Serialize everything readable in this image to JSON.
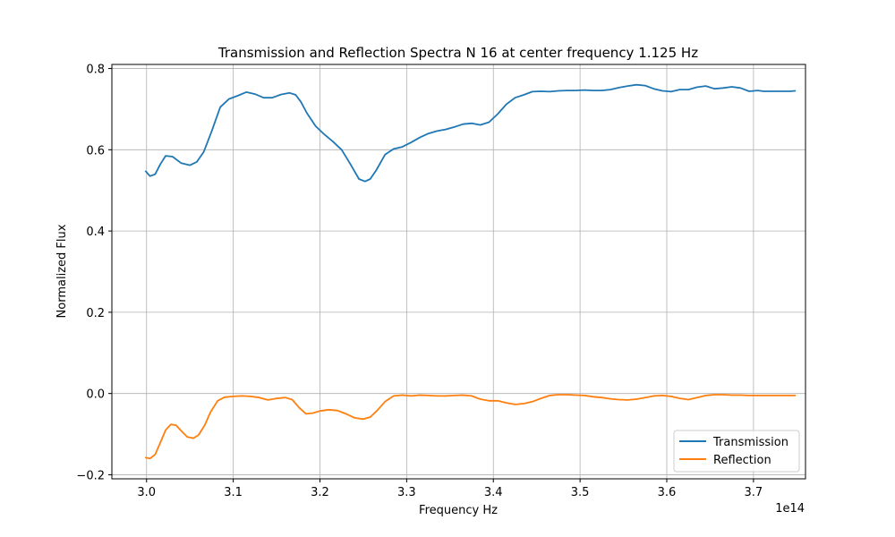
{
  "chart_data": {
    "type": "line",
    "title": "Transmission and Reflection Spectra N 16 at center frequency 1.125 Hz",
    "xlabel": "Frequency Hz",
    "ylabel": "Normalized Flux",
    "x_offset_label": "1e14",
    "xlim": [
      2.96,
      3.76
    ],
    "ylim": [
      -0.21,
      0.81
    ],
    "x_ticks": [
      3.0,
      3.1,
      3.2,
      3.3,
      3.4,
      3.5,
      3.6,
      3.7
    ],
    "x_tick_labels": [
      "3.0",
      "3.1",
      "3.2",
      "3.3",
      "3.4",
      "3.5",
      "3.6",
      "3.7"
    ],
    "y_ticks": [
      -0.2,
      0.0,
      0.2,
      0.4,
      0.6,
      0.8
    ],
    "y_tick_labels": [
      "−0.2",
      "0.0",
      "0.2",
      "0.4",
      "0.6",
      "0.8"
    ],
    "grid": true,
    "legend_position": "bottom-right",
    "series": [
      {
        "name": "Transmission",
        "color": "#1f77b4",
        "x": [
          2.999,
          3.004,
          3.01,
          3.016,
          3.022,
          3.03,
          3.04,
          3.05,
          3.058,
          3.066,
          3.075,
          3.085,
          3.095,
          3.105,
          3.115,
          3.125,
          3.135,
          3.145,
          3.155,
          3.165,
          3.172,
          3.178,
          3.185,
          3.195,
          3.205,
          3.215,
          3.225,
          3.235,
          3.245,
          3.252,
          3.258,
          3.265,
          3.275,
          3.285,
          3.295,
          3.305,
          3.315,
          3.325,
          3.335,
          3.345,
          3.355,
          3.365,
          3.375,
          3.385,
          3.395,
          3.405,
          3.415,
          3.425,
          3.435,
          3.445,
          3.455,
          3.465,
          3.475,
          3.485,
          3.495,
          3.505,
          3.515,
          3.525,
          3.535,
          3.545,
          3.555,
          3.565,
          3.575,
          3.585,
          3.595,
          3.605,
          3.615,
          3.625,
          3.635,
          3.645,
          3.655,
          3.665,
          3.675,
          3.685,
          3.695,
          3.705,
          3.712,
          3.72,
          3.728,
          3.735,
          3.742,
          3.748
        ],
        "y": [
          0.547,
          0.535,
          0.54,
          0.565,
          0.585,
          0.583,
          0.567,
          0.562,
          0.57,
          0.595,
          0.645,
          0.705,
          0.725,
          0.733,
          0.742,
          0.737,
          0.728,
          0.728,
          0.736,
          0.74,
          0.735,
          0.718,
          0.69,
          0.658,
          0.638,
          0.62,
          0.6,
          0.565,
          0.528,
          0.522,
          0.528,
          0.55,
          0.588,
          0.602,
          0.607,
          0.618,
          0.63,
          0.64,
          0.646,
          0.65,
          0.656,
          0.663,
          0.665,
          0.661,
          0.668,
          0.688,
          0.712,
          0.728,
          0.735,
          0.743,
          0.744,
          0.743,
          0.745,
          0.746,
          0.746,
          0.747,
          0.746,
          0.746,
          0.748,
          0.753,
          0.757,
          0.76,
          0.758,
          0.75,
          0.745,
          0.743,
          0.748,
          0.748,
          0.754,
          0.757,
          0.75,
          0.752,
          0.755,
          0.752,
          0.744,
          0.746,
          0.744,
          0.744,
          0.744,
          0.744,
          0.744,
          0.745
        ]
      },
      {
        "name": "Reflection",
        "color": "#ff7f0e",
        "x": [
          2.999,
          3.004,
          3.01,
          3.016,
          3.022,
          3.028,
          3.034,
          3.04,
          3.047,
          3.054,
          3.06,
          3.067,
          3.074,
          3.082,
          3.09,
          3.1,
          3.11,
          3.12,
          3.13,
          3.14,
          3.15,
          3.16,
          3.168,
          3.176,
          3.184,
          3.192,
          3.2,
          3.21,
          3.22,
          3.23,
          3.24,
          3.25,
          3.258,
          3.266,
          3.275,
          3.285,
          3.295,
          3.305,
          3.315,
          3.325,
          3.335,
          3.345,
          3.355,
          3.365,
          3.375,
          3.385,
          3.395,
          3.405,
          3.415,
          3.425,
          3.435,
          3.445,
          3.455,
          3.465,
          3.475,
          3.485,
          3.495,
          3.505,
          3.515,
          3.525,
          3.535,
          3.545,
          3.555,
          3.565,
          3.575,
          3.585,
          3.595,
          3.605,
          3.615,
          3.625,
          3.635,
          3.645,
          3.655,
          3.665,
          3.675,
          3.685,
          3.695,
          3.705,
          3.715,
          3.725,
          3.735,
          3.748
        ],
        "y": [
          -0.158,
          -0.16,
          -0.15,
          -0.12,
          -0.09,
          -0.076,
          -0.078,
          -0.092,
          -0.107,
          -0.11,
          -0.102,
          -0.078,
          -0.045,
          -0.018,
          -0.009,
          -0.007,
          -0.006,
          -0.007,
          -0.01,
          -0.016,
          -0.012,
          -0.01,
          -0.015,
          -0.035,
          -0.05,
          -0.048,
          -0.043,
          -0.04,
          -0.042,
          -0.05,
          -0.06,
          -0.063,
          -0.058,
          -0.042,
          -0.02,
          -0.006,
          -0.004,
          -0.006,
          -0.004,
          -0.005,
          -0.006,
          -0.006,
          -0.005,
          -0.004,
          -0.006,
          -0.014,
          -0.018,
          -0.018,
          -0.023,
          -0.027,
          -0.025,
          -0.02,
          -0.012,
          -0.005,
          -0.003,
          -0.003,
          -0.004,
          -0.005,
          -0.008,
          -0.01,
          -0.013,
          -0.015,
          -0.016,
          -0.014,
          -0.01,
          -0.006,
          -0.005,
          -0.007,
          -0.012,
          -0.015,
          -0.01,
          -0.005,
          -0.003,
          -0.003,
          -0.004,
          -0.004,
          -0.005,
          -0.005,
          -0.005,
          -0.005,
          -0.005,
          -0.005
        ]
      }
    ]
  }
}
